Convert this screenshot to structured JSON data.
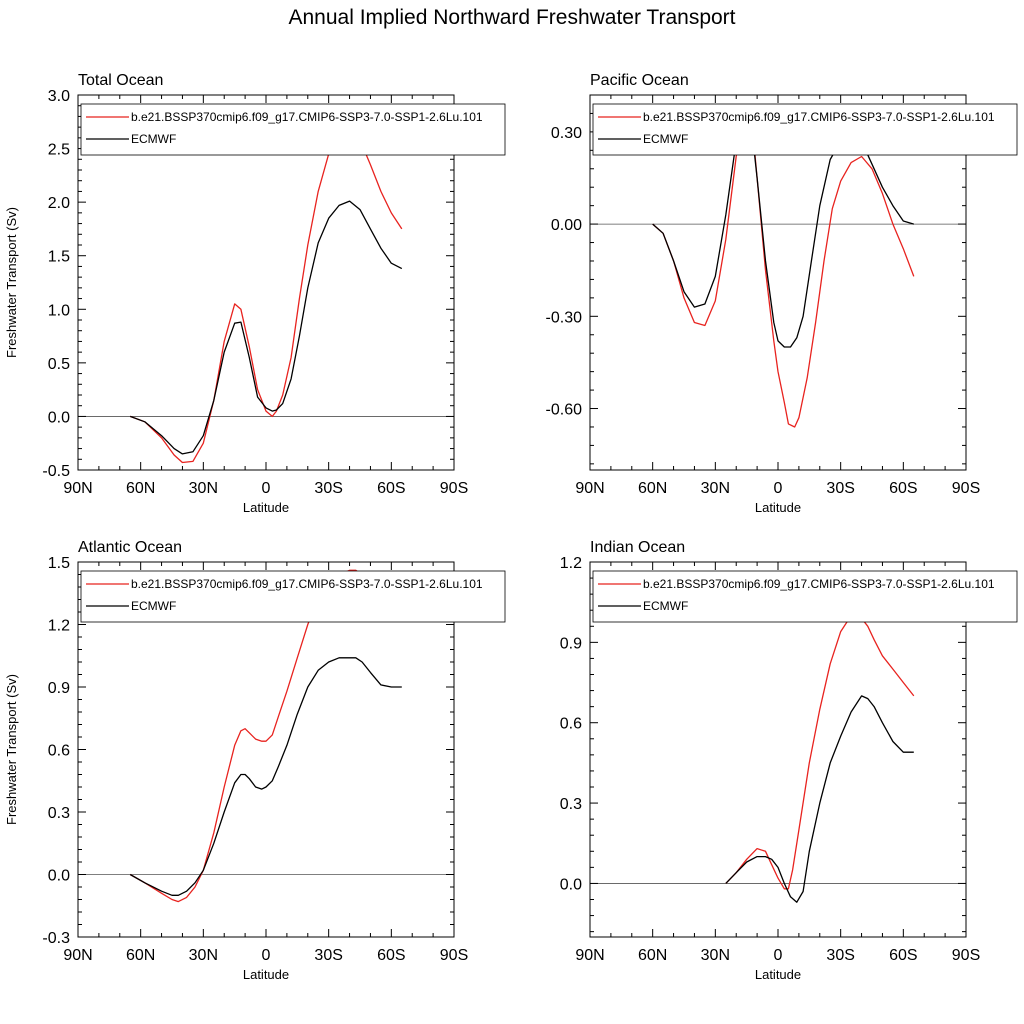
{
  "figure": {
    "title": "Annual Implied Northward Freshwater Transport"
  },
  "colors": {
    "model": "#e8231f",
    "obs": "#000000",
    "zero_line": "#555555"
  },
  "chart_data": [
    {
      "type": "line",
      "title": "Total Ocean",
      "xlabel": "Latitude",
      "ylabel": "Freshwater Transport (Sv)",
      "xlim": [
        -90,
        90
      ],
      "xticks": [
        -90,
        -60,
        -30,
        0,
        30,
        60,
        90
      ],
      "xticklabels": [
        "90N",
        "60N",
        "30N",
        "0",
        "30S",
        "60S",
        "90S"
      ],
      "ylim": [
        -0.5,
        3.0
      ],
      "yticks": [
        -0.5,
        0.0,
        0.5,
        1.0,
        1.5,
        2.0,
        2.5,
        3.0
      ],
      "yticklabels": [
        "-0.5",
        "0.0",
        "0.5",
        "1.0",
        "1.5",
        "2.0",
        "2.5",
        "3.0"
      ],
      "legend": "top-left",
      "series": [
        {
          "name": "b.e21.BSSP370cmip6.f09_g17.CMIP6-SSP3-7.0-SSP1-2.6Lu.101",
          "color": "model",
          "x": [
            -65,
            -58,
            -50,
            -44,
            -40,
            -35,
            -30,
            -25,
            -20,
            -15,
            -12,
            -8,
            -4,
            0,
            3,
            5,
            8,
            12,
            16,
            20,
            25,
            30,
            35,
            40,
            45,
            50,
            55,
            60,
            65
          ],
          "y": [
            0,
            -0.05,
            -0.2,
            -0.36,
            -0.43,
            -0.42,
            -0.25,
            0.15,
            0.7,
            1.05,
            1.0,
            0.65,
            0.25,
            0.05,
            0.0,
            0.05,
            0.2,
            0.55,
            1.1,
            1.6,
            2.1,
            2.45,
            2.62,
            2.68,
            2.58,
            2.35,
            2.1,
            1.9,
            1.75
          ]
        },
        {
          "name": "ECMWF",
          "color": "obs",
          "x": [
            -65,
            -58,
            -50,
            -44,
            -40,
            -35,
            -30,
            -25,
            -20,
            -15,
            -12,
            -8,
            -4,
            0,
            3,
            5,
            8,
            12,
            16,
            20,
            25,
            30,
            35,
            40,
            45,
            50,
            55,
            60,
            65
          ],
          "y": [
            0,
            -0.05,
            -0.18,
            -0.3,
            -0.35,
            -0.33,
            -0.18,
            0.15,
            0.6,
            0.87,
            0.88,
            0.55,
            0.18,
            0.08,
            0.05,
            0.06,
            0.12,
            0.35,
            0.75,
            1.2,
            1.62,
            1.85,
            1.97,
            2.01,
            1.93,
            1.75,
            1.57,
            1.43,
            1.38
          ]
        }
      ]
    },
    {
      "type": "line",
      "title": "Pacific Ocean",
      "xlabel": "Latitude",
      "ylabel": "",
      "xlim": [
        -90,
        90
      ],
      "xticks": [
        -90,
        -60,
        -30,
        0,
        30,
        60,
        90
      ],
      "xticklabels": [
        "90N",
        "60N",
        "30N",
        "0",
        "30S",
        "60S",
        "90S"
      ],
      "ylim": [
        -0.8,
        0.42
      ],
      "yticks": [
        -0.6,
        -0.3,
        0.0,
        0.3
      ],
      "yticklabels": [
        "-0.60",
        "-0.30",
        "0.00",
        "0.30"
      ],
      "legend": "top-left",
      "series": [
        {
          "name": "b.e21.BSSP370cmip6.f09_g17.CMIP6-SSP3-7.0-SSP1-2.6Lu.101",
          "color": "model",
          "x": [
            -60,
            -55,
            -50,
            -45,
            -40,
            -35,
            -30,
            -25,
            -20,
            -17,
            -14,
            -12,
            -10,
            -6,
            -2,
            0,
            3,
            5,
            8,
            10,
            14,
            18,
            22,
            26,
            30,
            35,
            40,
            45,
            50,
            55,
            60,
            65
          ],
          "y": [
            0,
            -0.03,
            -0.12,
            -0.24,
            -0.32,
            -0.33,
            -0.25,
            -0.05,
            0.22,
            0.35,
            0.36,
            0.3,
            0.15,
            -0.15,
            -0.38,
            -0.48,
            -0.58,
            -0.65,
            -0.66,
            -0.63,
            -0.5,
            -0.32,
            -0.12,
            0.05,
            0.14,
            0.2,
            0.22,
            0.18,
            0.1,
            0.0,
            -0.08,
            -0.17
          ]
        },
        {
          "name": "ECMWF",
          "color": "obs",
          "x": [
            -60,
            -55,
            -50,
            -45,
            -40,
            -35,
            -30,
            -25,
            -20,
            -17,
            -15,
            -13,
            -10,
            -6,
            -2,
            0,
            3,
            6,
            9,
            12,
            16,
            20,
            25,
            30,
            35,
            38,
            42,
            46,
            50,
            55,
            60,
            65
          ],
          "y": [
            0,
            -0.03,
            -0.12,
            -0.22,
            -0.27,
            -0.26,
            -0.17,
            0.03,
            0.27,
            0.35,
            0.37,
            0.34,
            0.15,
            -0.12,
            -0.32,
            -0.38,
            -0.4,
            -0.4,
            -0.37,
            -0.3,
            -0.12,
            0.06,
            0.21,
            0.27,
            0.28,
            0.27,
            0.24,
            0.18,
            0.12,
            0.06,
            0.01,
            0.0
          ]
        }
      ]
    },
    {
      "type": "line",
      "title": "Atlantic Ocean",
      "xlabel": "Latitude",
      "ylabel": "Freshwater Transport (Sv)",
      "xlim": [
        -90,
        90
      ],
      "xticks": [
        -90,
        -60,
        -30,
        0,
        30,
        60,
        90
      ],
      "xticklabels": [
        "90N",
        "60N",
        "30N",
        "0",
        "30S",
        "60S",
        "90S"
      ],
      "ylim": [
        -0.3,
        1.5
      ],
      "yticks": [
        -0.3,
        0.0,
        0.3,
        0.6,
        0.9,
        1.2,
        1.5
      ],
      "yticklabels": [
        "-0.3",
        "0.0",
        "0.3",
        "0.6",
        "0.9",
        "1.2",
        "1.5"
      ],
      "legend": "top-left",
      "series": [
        {
          "name": "b.e21.BSSP370cmip6.f09_g17.CMIP6-SSP3-7.0-SSP1-2.6Lu.101",
          "color": "model",
          "x": [
            -65,
            -58,
            -50,
            -45,
            -42,
            -38,
            -34,
            -30,
            -25,
            -20,
            -15,
            -12,
            -10,
            -8,
            -5,
            -2,
            0,
            3,
            6,
            10,
            15,
            20,
            25,
            30,
            35,
            40,
            43,
            46,
            50,
            55,
            60,
            65
          ],
          "y": [
            0,
            -0.04,
            -0.09,
            -0.12,
            -0.13,
            -0.11,
            -0.06,
            0.02,
            0.2,
            0.42,
            0.62,
            0.69,
            0.7,
            0.68,
            0.65,
            0.64,
            0.64,
            0.67,
            0.76,
            0.88,
            1.04,
            1.2,
            1.33,
            1.41,
            1.44,
            1.46,
            1.46,
            1.44,
            1.4,
            1.34,
            1.28,
            1.24
          ]
        },
        {
          "name": "ECMWF",
          "color": "obs",
          "x": [
            -65,
            -58,
            -50,
            -45,
            -42,
            -38,
            -34,
            -30,
            -25,
            -20,
            -15,
            -12,
            -10,
            -8,
            -5,
            -2,
            0,
            3,
            6,
            10,
            15,
            20,
            25,
            30,
            35,
            40,
            43,
            46,
            50,
            55,
            60,
            65
          ],
          "y": [
            0,
            -0.04,
            -0.08,
            -0.1,
            -0.1,
            -0.08,
            -0.04,
            0.02,
            0.15,
            0.3,
            0.44,
            0.48,
            0.48,
            0.46,
            0.42,
            0.41,
            0.42,
            0.45,
            0.52,
            0.62,
            0.77,
            0.9,
            0.98,
            1.02,
            1.04,
            1.04,
            1.04,
            1.02,
            0.97,
            0.91,
            0.9,
            0.9
          ]
        }
      ]
    },
    {
      "type": "line",
      "title": "Indian Ocean",
      "xlabel": "Latitude",
      "ylabel": "",
      "xlim": [
        -90,
        90
      ],
      "xticks": [
        -90,
        -60,
        -30,
        0,
        30,
        60,
        90
      ],
      "xticklabels": [
        "90N",
        "60N",
        "30N",
        "0",
        "30S",
        "60S",
        "90S"
      ],
      "ylim": [
        -0.2,
        1.2
      ],
      "yticks": [
        0.0,
        0.3,
        0.6,
        0.9,
        1.2
      ],
      "yticklabels": [
        "0.0",
        "0.3",
        "0.6",
        "0.9",
        "1.2"
      ],
      "legend": "top-left",
      "series": [
        {
          "name": "b.e21.BSSP370cmip6.f09_g17.CMIP6-SSP3-7.0-SSP1-2.6Lu.101",
          "color": "model",
          "x": [
            -25,
            -20,
            -15,
            -10,
            -6,
            -3,
            0,
            3,
            5,
            7,
            10,
            15,
            20,
            25,
            30,
            35,
            40,
            43,
            46,
            50,
            55,
            60,
            65
          ],
          "y": [
            0,
            0.04,
            0.09,
            0.13,
            0.12,
            0.07,
            0.02,
            -0.02,
            -0.02,
            0.05,
            0.2,
            0.45,
            0.65,
            0.82,
            0.94,
            1.0,
            0.99,
            0.96,
            0.91,
            0.85,
            0.8,
            0.75,
            0.7
          ]
        },
        {
          "name": "ECMWF",
          "color": "obs",
          "x": [
            -25,
            -20,
            -15,
            -10,
            -6,
            -3,
            0,
            3,
            6,
            9,
            12,
            15,
            20,
            25,
            30,
            35,
            40,
            43,
            46,
            50,
            55,
            60,
            65
          ],
          "y": [
            0,
            0.04,
            0.08,
            0.1,
            0.1,
            0.09,
            0.06,
            0.0,
            -0.05,
            -0.07,
            -0.03,
            0.12,
            0.3,
            0.45,
            0.55,
            0.64,
            0.7,
            0.69,
            0.66,
            0.6,
            0.53,
            0.49,
            0.49
          ]
        }
      ]
    }
  ]
}
